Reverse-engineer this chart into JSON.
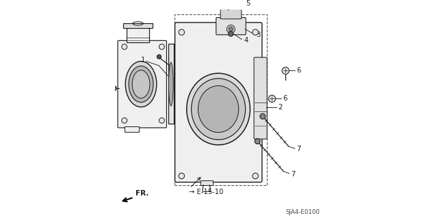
{
  "bg_color": "#ffffff",
  "lc": "#1a1a1a",
  "tc": "#1a1a1a",
  "figsize": [
    6.4,
    3.19
  ],
  "dpi": 100,
  "diagram_code": "SJA4-E0100",
  "fr_label": "FR.",
  "xlim": [
    0,
    10
  ],
  "ylim": [
    0,
    10
  ]
}
